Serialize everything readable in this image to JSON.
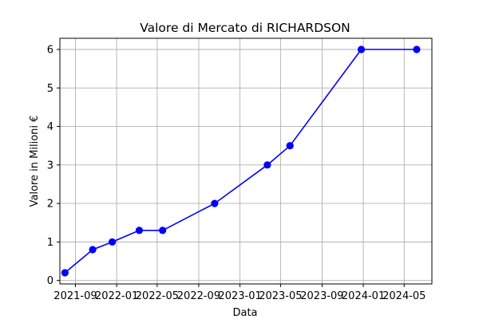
{
  "chart_data": {
    "type": "line",
    "title": "Valore di Mercato di RICHARDSON",
    "xlabel": "Data",
    "ylabel": "Valore in Milioni €",
    "x_tick_labels": [
      "2021-09",
      "2022-01",
      "2022-05",
      "2022-09",
      "2023-01",
      "2023-05",
      "2023-09",
      "2024-01",
      "2024-05"
    ],
    "y_tick_labels": [
      "0",
      "1",
      "2",
      "3",
      "4",
      "5",
      "6"
    ],
    "xlim": [
      "2021-07-17",
      "2024-07-22"
    ],
    "ylim": [
      -0.09,
      6.29
    ],
    "grid": true,
    "series": [
      {
        "color": "#0000ff",
        "marker": "circle",
        "points": [
          {
            "x": "2021-08-01",
            "y": 0.2
          },
          {
            "x": "2021-10-22",
            "y": 0.8
          },
          {
            "x": "2021-12-19",
            "y": 1.0
          },
          {
            "x": "2022-03-09",
            "y": 1.3
          },
          {
            "x": "2022-05-17",
            "y": 1.3
          },
          {
            "x": "2022-10-18",
            "y": 2.0
          },
          {
            "x": "2023-03-23",
            "y": 3.0
          },
          {
            "x": "2023-05-29",
            "y": 3.5
          },
          {
            "x": "2023-12-26",
            "y": 6.0
          },
          {
            "x": "2024-06-07",
            "y": 6.0
          }
        ]
      }
    ]
  }
}
